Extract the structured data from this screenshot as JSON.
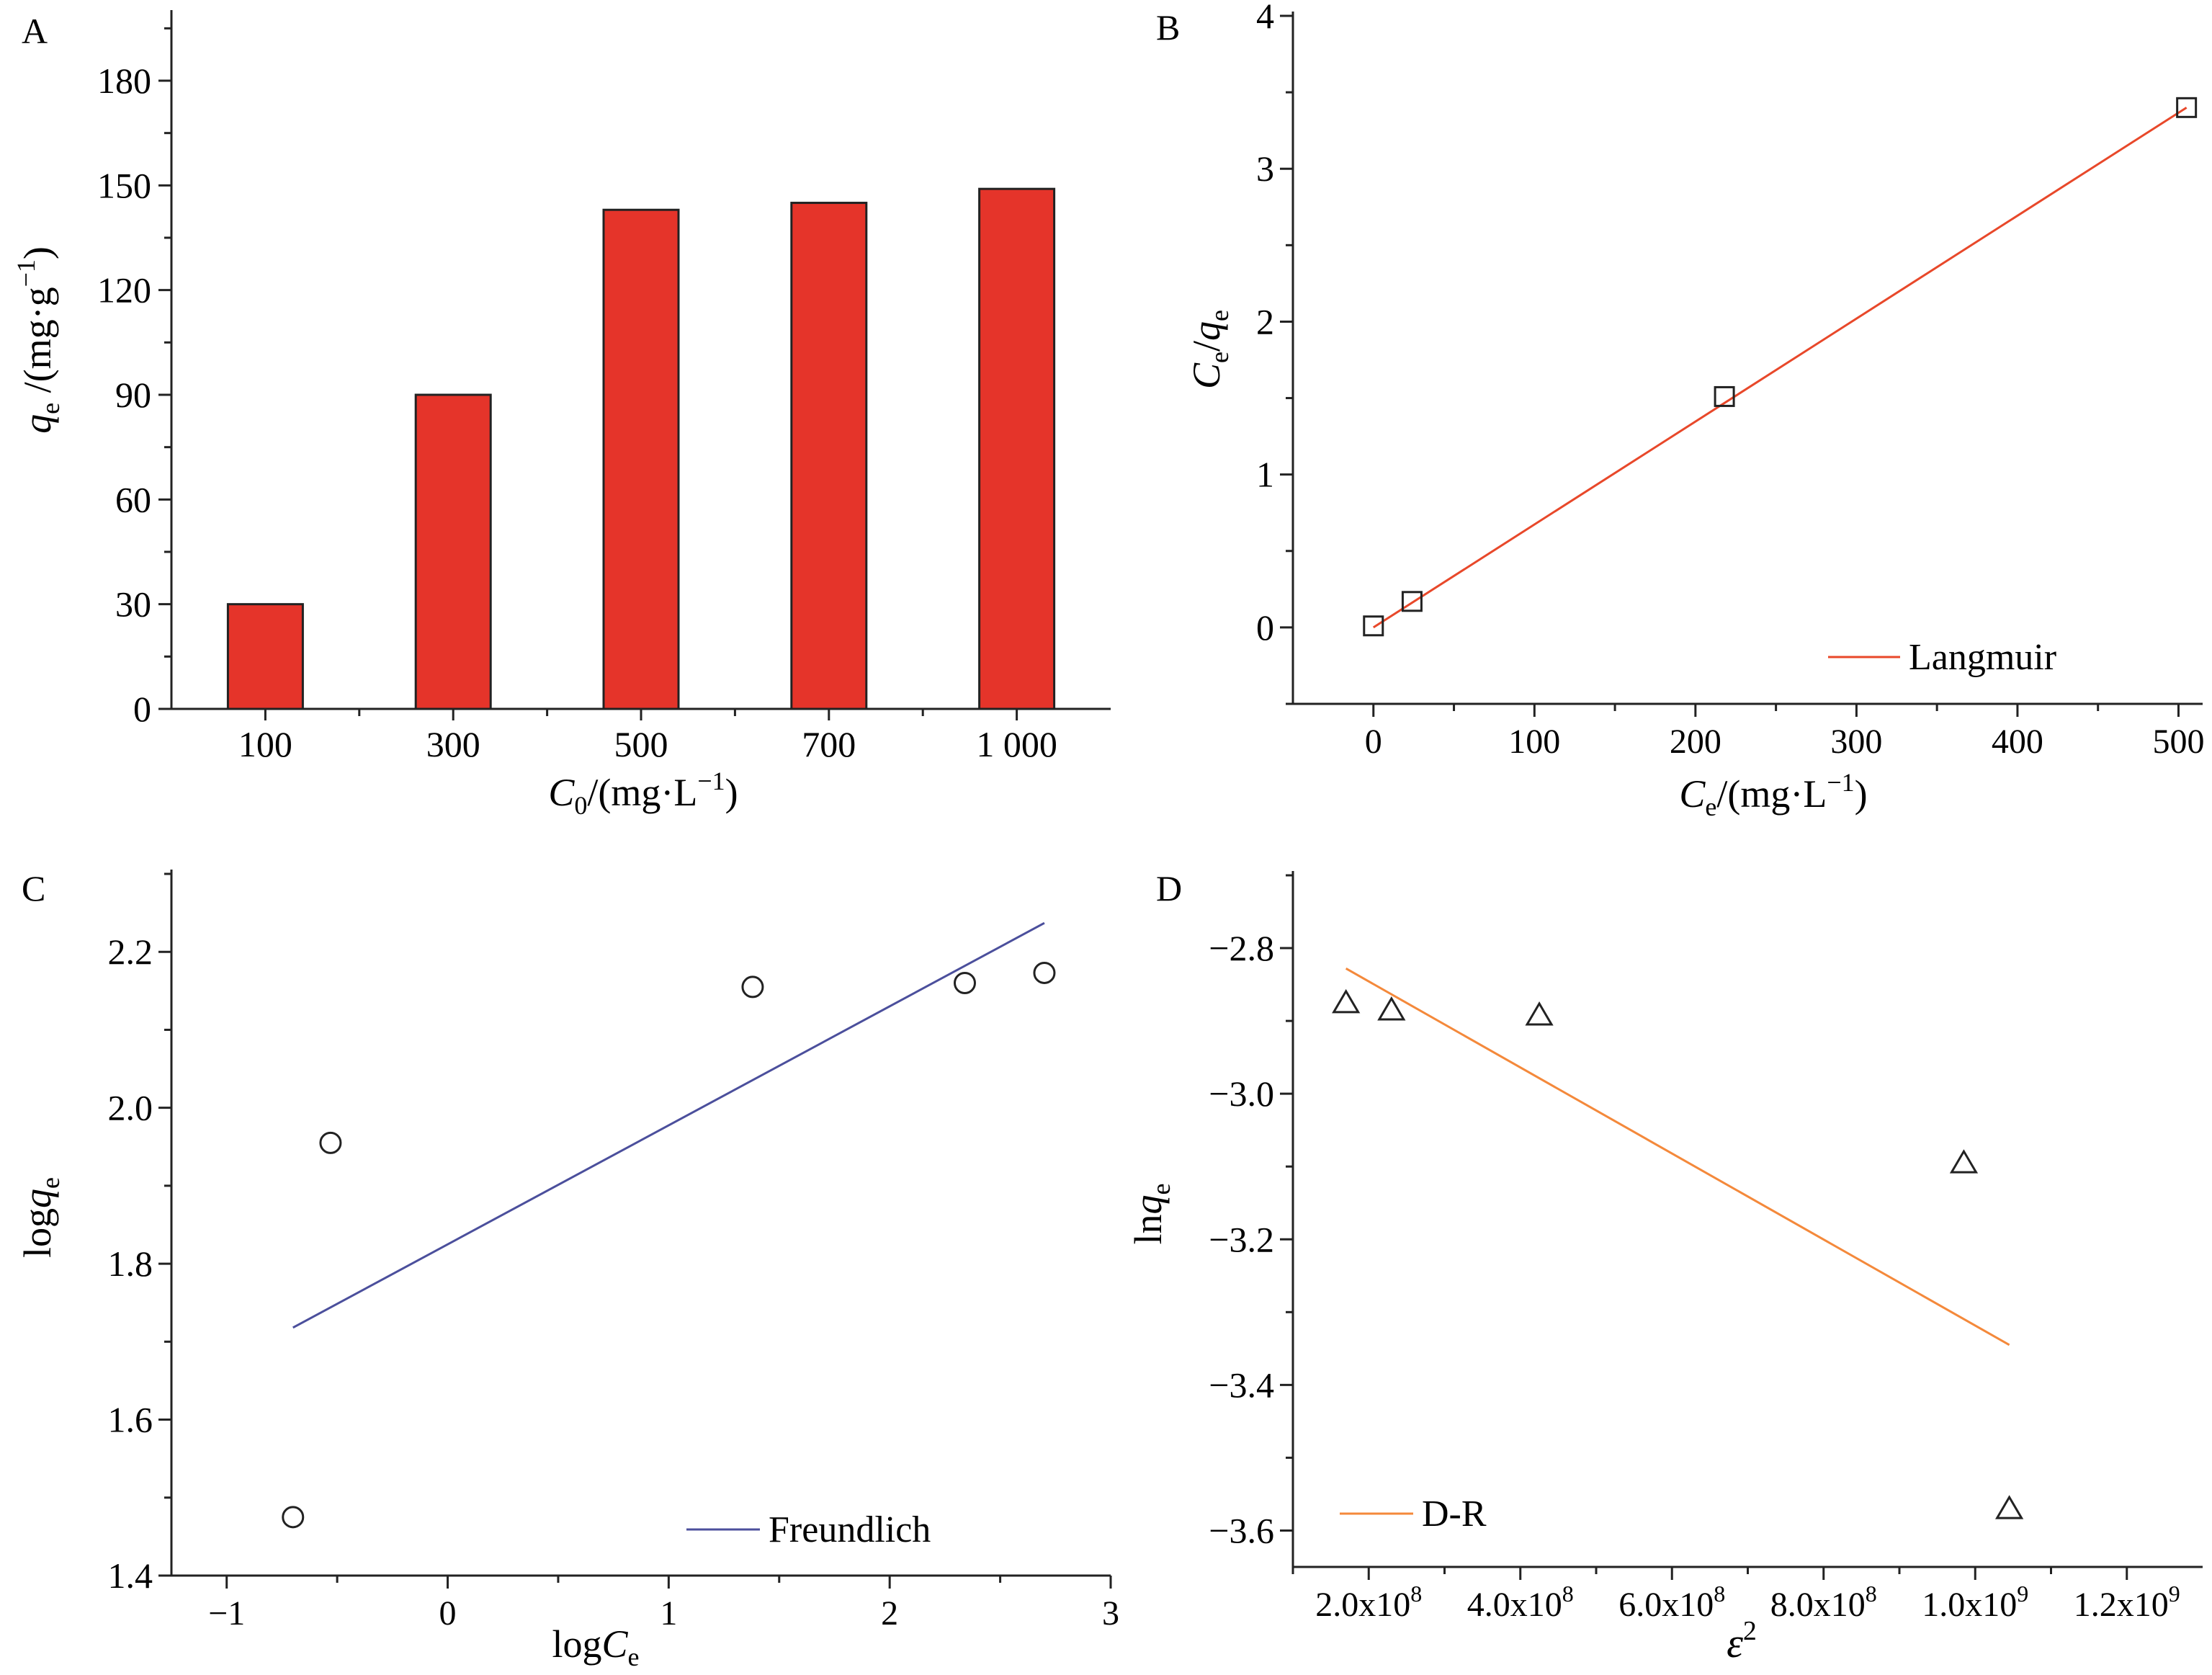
{
  "panels": {
    "A": {
      "letter": "A"
    },
    "B": {
      "letter": "B"
    },
    "C": {
      "letter": "C"
    },
    "D": {
      "letter": "D"
    }
  },
  "chart_data": [
    {
      "id": "A",
      "type": "bar",
      "categories": [
        "100",
        "300",
        "500",
        "700",
        "1 000"
      ],
      "values": [
        30,
        90,
        143,
        145,
        149
      ],
      "ylim": [
        0,
        200
      ],
      "yticks": [
        "0",
        "30",
        "60",
        "90",
        "120",
        "150",
        "180"
      ],
      "xlabel": {
        "main": "C",
        "sub": "0",
        "rest": "/(mg·L",
        "sup": "−1",
        "end": ")"
      },
      "ylabel": {
        "main": "q",
        "sub": "e",
        "rest": " /(mg·g",
        "sup": "−1",
        "end": ")"
      },
      "bar_color": "#e5342a"
    },
    {
      "id": "B",
      "type": "scatter",
      "marker": "square",
      "points": [
        {
          "x": 0,
          "y": 0.01
        },
        {
          "x": 24,
          "y": 0.17
        },
        {
          "x": 218,
          "y": 1.51
        },
        {
          "x": 505,
          "y": 3.4
        }
      ],
      "fit": {
        "name": "Langmuir",
        "x": [
          0,
          505
        ],
        "y": [
          0.0,
          3.4
        ],
        "color": "#e8482a"
      },
      "xlim": [
        -50,
        515
      ],
      "ylim": [
        -0.5,
        4
      ],
      "xticks": [
        "0",
        "100",
        "200",
        "300",
        "400",
        "500"
      ],
      "yticks": [
        "0",
        "1",
        "2",
        "3",
        "4"
      ],
      "xlabel": {
        "main": "C",
        "sub": "e",
        "rest": "/(mg·L",
        "sup": "−1",
        "end": ")"
      },
      "ylabel": {
        "main": "C",
        "sub": "e",
        "rest": "/",
        "main2": "q",
        "sub2": "e"
      },
      "legend": "bottom-right"
    },
    {
      "id": "C",
      "type": "scatter",
      "marker": "circle",
      "points": [
        {
          "x": -0.7,
          "y": 1.475
        },
        {
          "x": -0.53,
          "y": 1.955
        },
        {
          "x": 1.38,
          "y": 2.155
        },
        {
          "x": 2.34,
          "y": 2.16
        },
        {
          "x": 2.7,
          "y": 2.173
        }
      ],
      "fit": {
        "name": "Freundlich",
        "x": [
          -0.7,
          2.7
        ],
        "y": [
          1.718,
          2.237
        ],
        "color": "#4b4f9c"
      },
      "xlim": [
        -1.25,
        3
      ],
      "ylim": [
        1.4,
        2.3
      ],
      "xticks": [
        "−1",
        "0",
        "1",
        "2",
        "3"
      ],
      "yticks": [
        "1.4",
        "1.6",
        "1.8",
        "2.0",
        "2.2"
      ],
      "xlabel": {
        "main": "log",
        "main2": "C",
        "sub": "e"
      },
      "ylabel": {
        "main": "log",
        "main2": "q",
        "sub": "e"
      },
      "legend": "bottom-right"
    },
    {
      "id": "D",
      "type": "scatter",
      "marker": "triangle",
      "points": [
        {
          "x": 170000000,
          "y": -2.875
        },
        {
          "x": 230000000,
          "y": -2.885
        },
        {
          "x": 425000000,
          "y": -2.892
        },
        {
          "x": 985000000,
          "y": -3.095
        },
        {
          "x": 1045000000,
          "y": -3.57
        }
      ],
      "fit": {
        "name": "D-R",
        "x": [
          170000000,
          1045000000
        ],
        "y": [
          -2.828,
          -3.345
        ],
        "color": "#f4893b"
      },
      "xlim": [
        100000000,
        1300000000
      ],
      "ylim": [
        -3.65,
        -2.7
      ],
      "xticks": [
        "2.0x10",
        "4.0x10",
        "6.0x10",
        "8.0x10",
        "1.0x10",
        "1.2x10"
      ],
      "xtick_exp": [
        "8",
        "8",
        "8",
        "8",
        "9",
        "9"
      ],
      "yticks": [
        "−2.8",
        "−3.0",
        "−3.2",
        "−3.4",
        "−3.6"
      ],
      "xlabel": {
        "main": "ε",
        "sup": "2"
      },
      "ylabel": {
        "main": "ln",
        "main2": "q",
        "sub": "e"
      },
      "legend": "bottom-left"
    }
  ]
}
